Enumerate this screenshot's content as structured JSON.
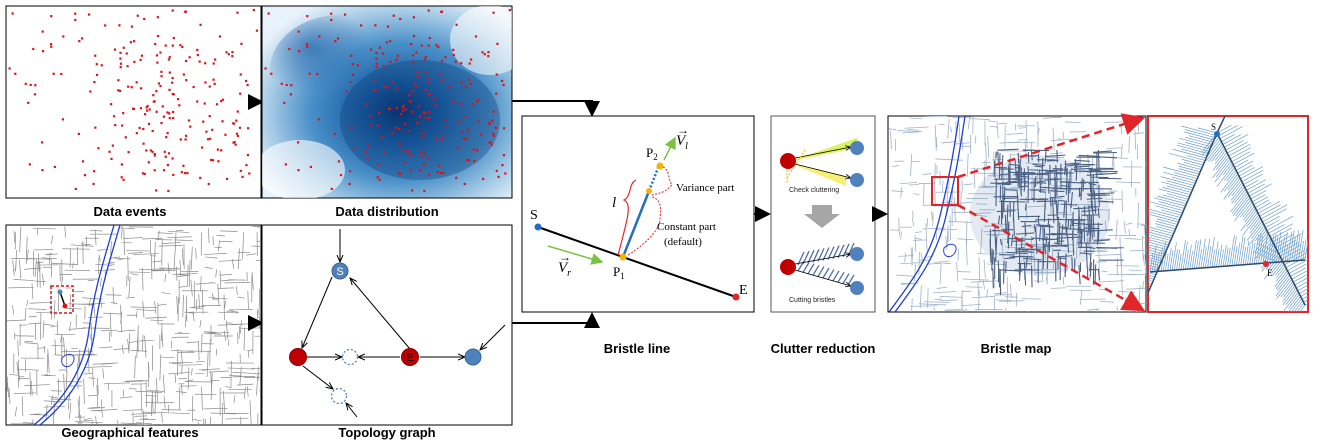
{
  "captions": {
    "data_events": "Data events",
    "data_distribution": "Data distribution",
    "geographical_features": "Geographical features",
    "topology_graph": "Topology graph",
    "bristle_line": "Bristle line",
    "clutter_reduction": "Clutter reduction",
    "bristle_map": "Bristle map"
  },
  "topology": {
    "start_label": "S",
    "end_label": "E"
  },
  "bristle_line": {
    "s_label": "S",
    "e_label": "E",
    "p1_label": "P",
    "p1_sub": "1",
    "p2_label": "P",
    "p2_sub": "2",
    "vl_label": "V",
    "vl_sub": "l",
    "vr_label": "V",
    "vr_sub": "r",
    "l_label": "l",
    "variance_part": "Variance part",
    "constant_part": "Constant part",
    "default_note": "(default)"
  },
  "clutter": {
    "check_label": "Check cluttering",
    "cutting_label": "Cutting bristles"
  },
  "zoom": {
    "s_label": "S",
    "e_label": "E"
  },
  "colors": {
    "red_point": "#d9141b",
    "blue_node": "#4f81bd",
    "road": "#888888",
    "river": "#1f3fd6",
    "green_arrow": "#7cc242",
    "yellow_point": "#f4b400",
    "frame_red": "#e0262b"
  }
}
